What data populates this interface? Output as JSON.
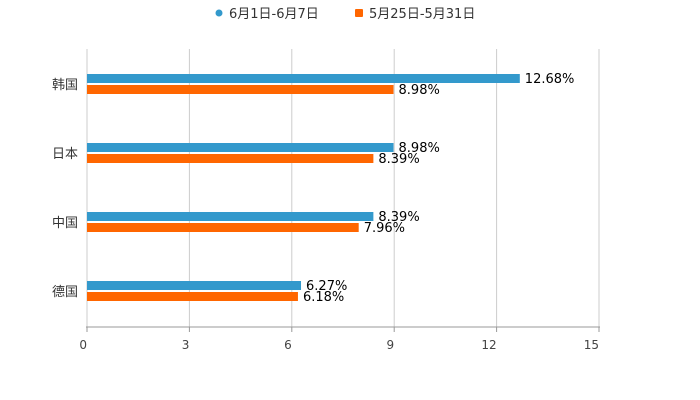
{
  "chart_data": {
    "type": "bar",
    "orientation": "horizontal",
    "categories": [
      "韩国",
      "日本",
      "中国",
      "德国"
    ],
    "series": [
      {
        "name": "6月1日-6月7日",
        "color": "#3399cc",
        "values": [
          12.68,
          8.98,
          8.39,
          6.27
        ],
        "labels": [
          "12.68%",
          "8.98%",
          "8.39%",
          "6.27%"
        ]
      },
      {
        "name": "5月25日-5月31日",
        "color": "#ff6600",
        "values": [
          8.98,
          8.39,
          7.96,
          6.18
        ],
        "labels": [
          "8.98%",
          "8.39%",
          "7.96%",
          "6.18%"
        ]
      }
    ],
    "xticks": [
      "0",
      "3",
      "6",
      "9",
      "12",
      "15"
    ],
    "xtick_values": [
      0,
      3,
      6,
      9,
      12,
      15
    ],
    "xlim": [
      0,
      15
    ],
    "title": "",
    "xlabel": "",
    "ylabel": "",
    "grid": "vertical",
    "legend_position": "top-center",
    "gridline_color": "#cccccc",
    "axis_color": "#999999"
  }
}
